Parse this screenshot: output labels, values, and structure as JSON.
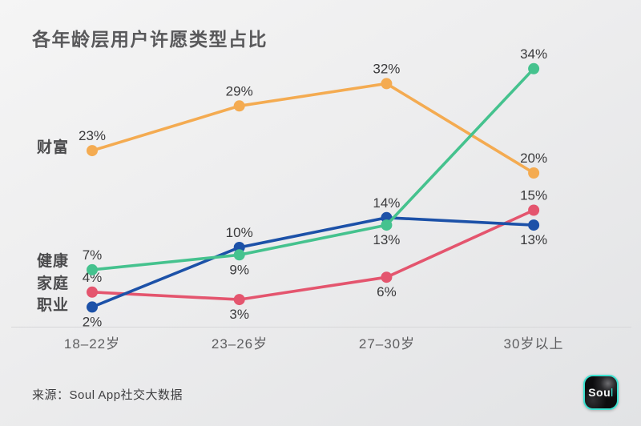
{
  "page": {
    "title": "各年龄层用户许愿类型占比",
    "source": "来源：Soul App社交大数据"
  },
  "branding": {
    "logo_text_main": "Sou",
    "logo_text_accent": "l",
    "logo_border_color": "#3ce2d1",
    "logo_background": "#0c0c0e"
  },
  "chart_data": {
    "type": "line",
    "title": "各年龄层用户许愿类型占比",
    "categories": [
      "18–22岁",
      "23–26岁",
      "27–30岁",
      "30岁以上"
    ],
    "unit": "%",
    "ylim": [
      0,
      38
    ],
    "grid": false,
    "markers": true,
    "legend_position": "left-of-first-points",
    "series": [
      {
        "name": "财富",
        "color": "#F4AB51",
        "values": [
          23,
          29,
          32,
          20
        ],
        "label_pos": [
          "above",
          "above",
          "above",
          "above"
        ]
      },
      {
        "name": "健康",
        "color": "#45C28E",
        "values": [
          7,
          9,
          13,
          34
        ],
        "label_pos": [
          "above",
          "below",
          "below",
          "above"
        ]
      },
      {
        "name": "家庭",
        "color": "#E4556E",
        "values": [
          4,
          3,
          6,
          15
        ],
        "label_pos": [
          "above",
          "below",
          "below",
          "above"
        ]
      },
      {
        "name": "职业",
        "color": "#1C51A8",
        "values": [
          2,
          10,
          14,
          13
        ],
        "label_pos": [
          "below",
          "above",
          "above",
          "below"
        ]
      }
    ]
  }
}
